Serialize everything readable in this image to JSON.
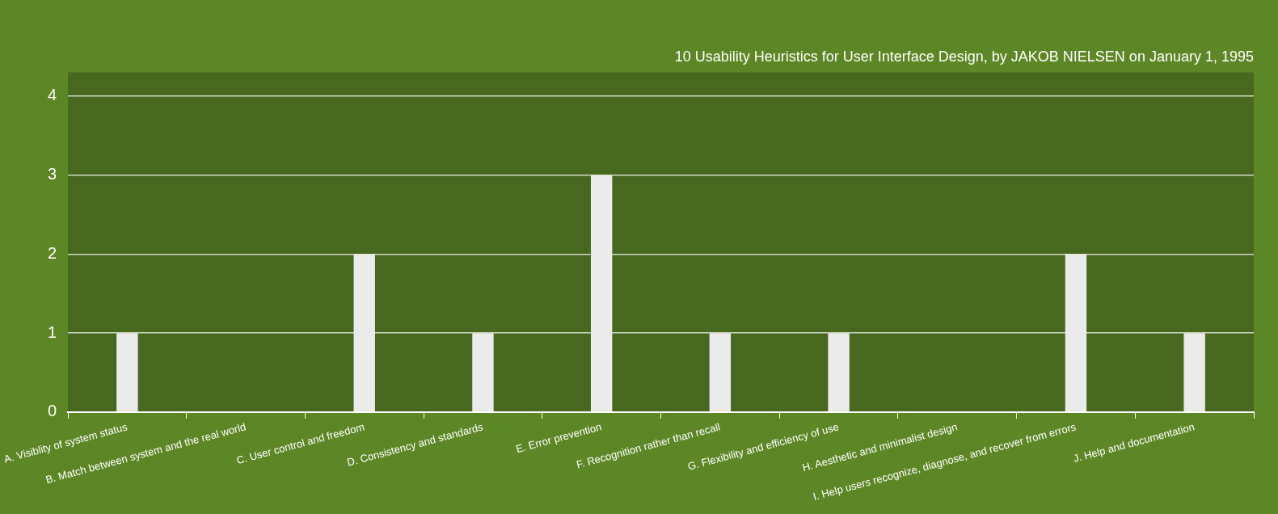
{
  "chart_data": {
    "type": "bar",
    "title": "10 Usability Heuristics for User Interface Design, by JAKOB NIELSEN on January 1, 1995",
    "categories": [
      "A. Visiblity of system status",
      "B. Match between system and the real world",
      "C. User control and freedom",
      "D. Consistency and standards",
      "E. Error prevention",
      "F. Recognition rather than recall",
      "G. Flexibility and efficiency of use",
      "H. Aesthetic and minimalist design",
      "I. Help users recognize, diagnose, and recover from errors",
      "J. Help and documentation"
    ],
    "values": [
      1,
      0,
      2,
      1,
      3,
      1,
      1,
      0,
      2,
      1
    ],
    "color": "#ebebeb",
    "ylim": [
      0,
      4.3
    ],
    "yticks": [
      0,
      1,
      2,
      3,
      4
    ],
    "grid": "y",
    "legend": false
  }
}
